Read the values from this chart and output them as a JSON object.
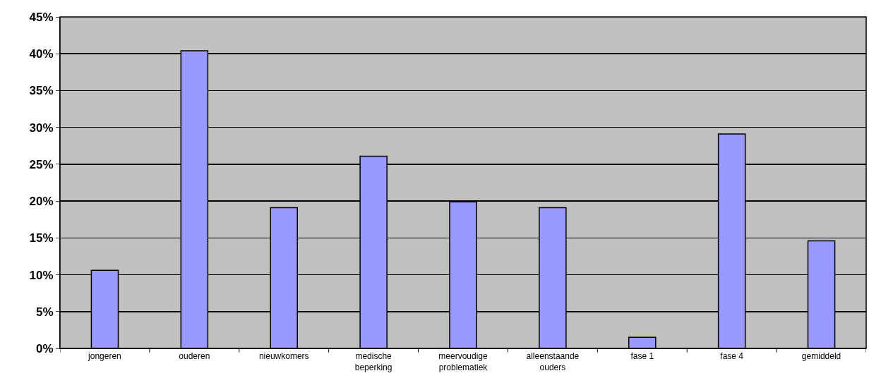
{
  "chart_data": {
    "type": "bar",
    "categories": [
      "jongeren",
      "ouderen",
      "nieuwkomers",
      "medische beperking",
      "meervoudige problematiek",
      "alleenstaande ouders",
      "fase 1",
      "fase 4",
      "gemiddeld"
    ],
    "values": [
      10.6,
      40.4,
      19.1,
      26.1,
      19.9,
      19.1,
      1.5,
      29.1,
      14.6
    ],
    "color": "#9999ff",
    "ylim": [
      0,
      45
    ],
    "yticks": [
      {
        "value": 0,
        "label": "0%"
      },
      {
        "value": 5,
        "label": "5%"
      },
      {
        "value": 10,
        "label": "10%"
      },
      {
        "value": 15,
        "label": "15%"
      },
      {
        "value": 20,
        "label": "20%"
      },
      {
        "value": 25,
        "label": "25%"
      },
      {
        "value": 30,
        "label": "30%"
      },
      {
        "value": 35,
        "label": "35%"
      },
      {
        "value": 40,
        "label": "40%"
      },
      {
        "value": 45,
        "label": "45%"
      }
    ],
    "grid": "y"
  }
}
